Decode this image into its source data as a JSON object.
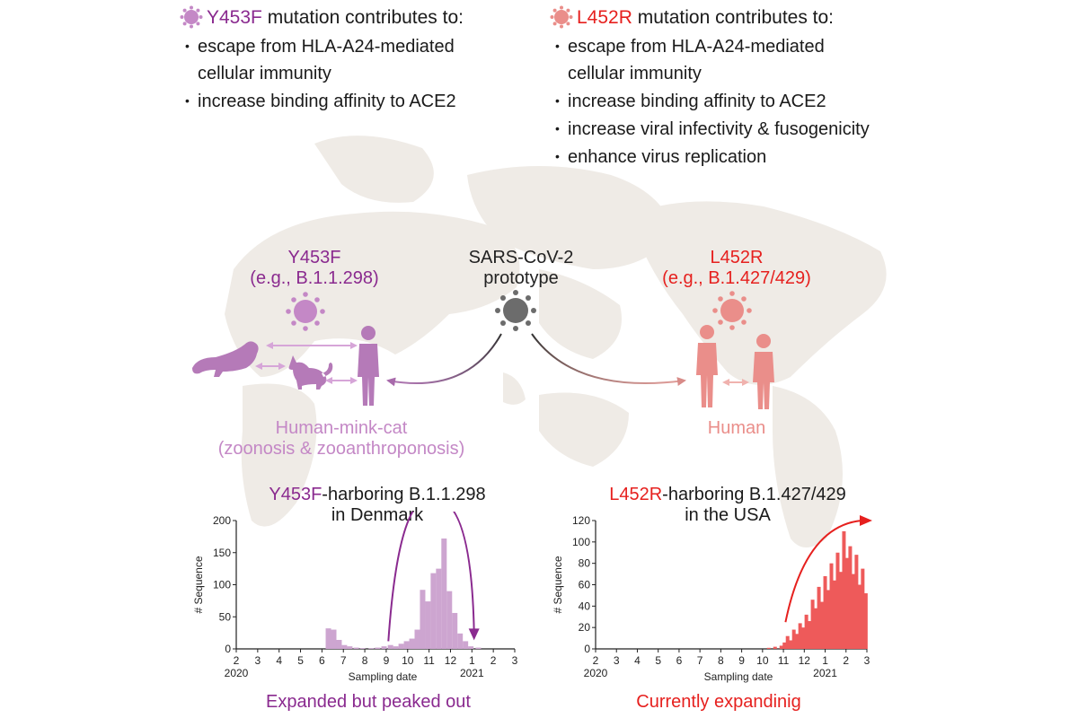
{
  "colors": {
    "purple_dark": "#8a2a8f",
    "purple_light": "#c488c6",
    "red": "#e6201e",
    "pink": "#ea8e8a",
    "gray": "#6c6c6c",
    "map": "#efebe6"
  },
  "left_box": {
    "icon": "virus-icon",
    "mutation": "Y453F",
    "title_suffix": " mutation contributes to:",
    "items": [
      "escape from HLA-A24-mediated",
      "cellular immunity",
      "increase binding affinity to ACE2"
    ]
  },
  "right_box": {
    "icon": "virus-icon",
    "mutation": "L452R",
    "title_suffix": " mutation contributes to:",
    "items": [
      "escape from HLA-A24-mediated",
      "cellular immunity",
      "increase binding affinity to ACE2",
      "increase viral infectivity & fusogenicity",
      "enhance virus replication"
    ]
  },
  "center": {
    "title_line1": "SARS-CoV-2",
    "title_line2": "prototype"
  },
  "left_variant": {
    "name": "Y453F",
    "example": "(e.g., B.1.1.298)",
    "host_line1": "Human-mink-cat",
    "host_line2": "(zoonosis & zooanthroponosis)"
  },
  "right_variant": {
    "name": "L452R",
    "example": "(e.g., B.1.427/429)",
    "host": "Human"
  },
  "chart_data": [
    {
      "type": "bar",
      "title_mutation": "Y453F",
      "title_rest": "-harboring B.1.1.298",
      "title_line2": "in Denmark",
      "ylabel": "# Sequence",
      "xlabel": "Sampling date",
      "ylim": [
        0,
        200
      ],
      "yticks": [
        0,
        50,
        100,
        150,
        200
      ],
      "xticks": [
        "2",
        "3",
        "4",
        "5",
        "6",
        "7",
        "8",
        "9",
        "10",
        "11",
        "12",
        "1",
        "2",
        "3"
      ],
      "year_labels": [
        "2020",
        "2021"
      ],
      "x_domain": [
        2,
        15
      ],
      "bars": [
        {
          "x": 6.3,
          "value": 32
        },
        {
          "x": 6.55,
          "value": 30
        },
        {
          "x": 6.8,
          "value": 14
        },
        {
          "x": 7.05,
          "value": 6
        },
        {
          "x": 7.3,
          "value": 4
        },
        {
          "x": 7.6,
          "value": 2
        },
        {
          "x": 7.9,
          "value": 1
        },
        {
          "x": 8.3,
          "value": 1
        },
        {
          "x": 8.6,
          "value": 2
        },
        {
          "x": 8.9,
          "value": 4
        },
        {
          "x": 9.2,
          "value": 6
        },
        {
          "x": 9.45,
          "value": 4
        },
        {
          "x": 9.7,
          "value": 8
        },
        {
          "x": 9.95,
          "value": 12
        },
        {
          "x": 10.2,
          "value": 16
        },
        {
          "x": 10.45,
          "value": 30
        },
        {
          "x": 10.7,
          "value": 92
        },
        {
          "x": 10.95,
          "value": 74
        },
        {
          "x": 11.2,
          "value": 118
        },
        {
          "x": 11.45,
          "value": 125
        },
        {
          "x": 11.7,
          "value": 172
        },
        {
          "x": 11.95,
          "value": 90
        },
        {
          "x": 12.2,
          "value": 56
        },
        {
          "x": 12.45,
          "value": 24
        },
        {
          "x": 12.7,
          "value": 12
        },
        {
          "x": 12.95,
          "value": 4
        },
        {
          "x": 13.3,
          "value": 2
        }
      ],
      "trend": "expanded then peaked",
      "caption": "Expanded but peaked out"
    },
    {
      "type": "bar",
      "title_mutation": "L452R",
      "title_rest": "-harboring B.1.427/429",
      "title_line2": "in the USA",
      "ylabel": "# Sequence",
      "xlabel": "Sampling date",
      "ylim": [
        0,
        120
      ],
      "yticks": [
        0,
        20,
        40,
        60,
        80,
        100,
        120
      ],
      "xticks": [
        "2",
        "3",
        "4",
        "5",
        "6",
        "7",
        "8",
        "9",
        "10",
        "11",
        "12",
        "1",
        "2",
        "3"
      ],
      "year_labels": [
        "2020",
        "2021"
      ],
      "x_domain": [
        2,
        15
      ],
      "bars": [
        {
          "x": 10.3,
          "value": 1
        },
        {
          "x": 10.6,
          "value": 2
        },
        {
          "x": 10.9,
          "value": 3
        },
        {
          "x": 11.05,
          "value": 6
        },
        {
          "x": 11.2,
          "value": 12
        },
        {
          "x": 11.35,
          "value": 8
        },
        {
          "x": 11.5,
          "value": 18
        },
        {
          "x": 11.65,
          "value": 14
        },
        {
          "x": 11.8,
          "value": 24
        },
        {
          "x": 11.95,
          "value": 20
        },
        {
          "x": 12.1,
          "value": 32
        },
        {
          "x": 12.25,
          "value": 26
        },
        {
          "x": 12.4,
          "value": 46
        },
        {
          "x": 12.55,
          "value": 38
        },
        {
          "x": 12.7,
          "value": 58
        },
        {
          "x": 12.85,
          "value": 44
        },
        {
          "x": 13.0,
          "value": 68
        },
        {
          "x": 13.15,
          "value": 55
        },
        {
          "x": 13.3,
          "value": 80
        },
        {
          "x": 13.45,
          "value": 64
        },
        {
          "x": 13.6,
          "value": 90
        },
        {
          "x": 13.75,
          "value": 72
        },
        {
          "x": 13.9,
          "value": 110
        },
        {
          "x": 14.05,
          "value": 85
        },
        {
          "x": 14.2,
          "value": 96
        },
        {
          "x": 14.35,
          "value": 70
        },
        {
          "x": 14.5,
          "value": 88
        },
        {
          "x": 14.65,
          "value": 60
        },
        {
          "x": 14.8,
          "value": 75
        },
        {
          "x": 14.95,
          "value": 52
        }
      ],
      "trend": "expanding",
      "caption": "Currently expandinig"
    }
  ]
}
